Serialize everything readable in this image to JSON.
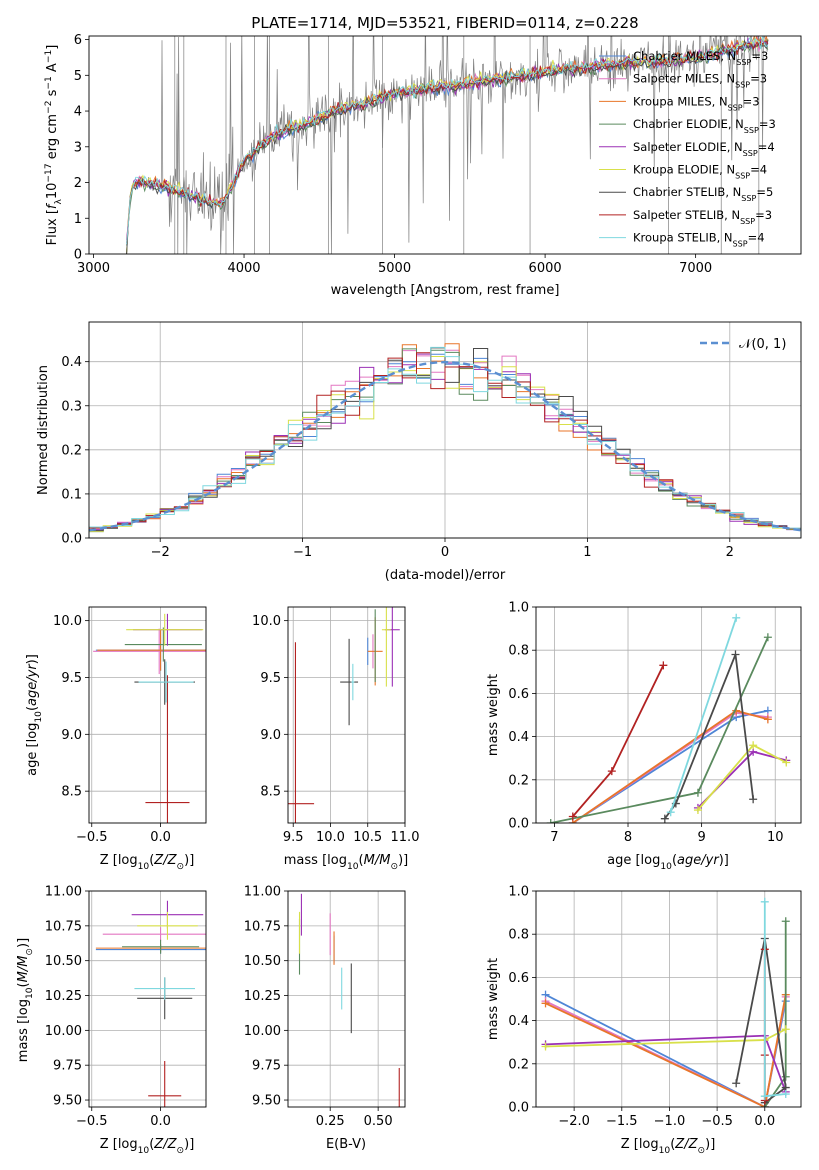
{
  "colors": {
    "chabrier_miles": "#4f86d6",
    "salpeter_miles": "#e377c2",
    "kroupa_miles": "#e8762a",
    "chabrier_elodie": "#5a8a5e",
    "salpeter_elodie": "#9b30b5",
    "kroupa_elodie": "#d8e04a",
    "chabrier_stelib": "#4a4a4a",
    "salpeter_stelib": "#b22222",
    "kroupa_stelib": "#7fd8df",
    "data_spectrum": "#7f7f7f",
    "gaussian": "#5b8fd1",
    "grid": "#b0b0b0"
  },
  "chart_data": [
    {
      "id": "spectrum",
      "type": "line",
      "title": "PLATE=1714, MJD=53521, FIBERID=0114, z=0.228",
      "xlabel": "wavelength [Angstrom, rest frame]",
      "ylabel": "Flux [f_λ10^-17 erg cm^-2 s^-1 A^-1]",
      "xlim": [
        2970,
        7700
      ],
      "ylim": [
        0,
        6.1
      ],
      "xticks": [
        "3000",
        "4000",
        "5000",
        "6000",
        "7000"
      ],
      "yticks": [
        "0",
        "1",
        "2",
        "3",
        "4",
        "5",
        "6"
      ],
      "legend_position": "upper right",
      "legend": [
        "Chabrier MILES, N_SSP=3",
        "Salpeter MILES, N_SSP=3",
        "Kroupa MILES, N_SSP=3",
        "Chabrier ELODIE, N_SSP=3",
        "Salpeter ELODIE, N_SSP=4",
        "Kroupa ELODIE, N_SSP=4",
        "Chabrier STELIB, N_SSP=5",
        "Salpeter STELIB, N_SSP=3",
        "Kroupa STELIB, N_SSP=4"
      ],
      "model_continuum": {
        "x": [
          3220,
          3240,
          3260,
          3300,
          3350,
          3400,
          3450,
          3500,
          3550,
          3600,
          3650,
          3700,
          3750,
          3800,
          3850,
          3900,
          3950,
          4000,
          4100,
          4200,
          4300,
          4400,
          4500,
          4600,
          4700,
          4800,
          4900,
          5000,
          5200,
          5400,
          5600,
          5800,
          6000,
          6200,
          6400,
          6600,
          6800,
          7000,
          7200,
          7400
        ],
        "y": [
          0.1,
          1.5,
          1.9,
          2.05,
          2.0,
          1.95,
          1.9,
          1.85,
          1.75,
          1.7,
          1.65,
          1.55,
          1.5,
          1.45,
          1.4,
          1.7,
          2.2,
          2.6,
          3.0,
          3.3,
          3.5,
          3.6,
          3.8,
          4.0,
          4.1,
          4.2,
          4.35,
          4.5,
          4.6,
          4.7,
          4.85,
          4.95,
          5.1,
          5.2,
          5.3,
          5.35,
          5.4,
          5.5,
          5.7,
          5.9
        ]
      }
    },
    {
      "id": "residuals",
      "type": "histogram",
      "xlabel": "(data-model)/error",
      "ylabel": "Normed distribution",
      "xlim": [
        -2.5,
        2.5
      ],
      "ylim": [
        0,
        0.49
      ],
      "xticks": [
        "−2",
        "−1",
        "0",
        "1",
        "2"
      ],
      "yticks": [
        "0.0",
        "0.1",
        "0.2",
        "0.3",
        "0.4"
      ],
      "legend_position": "upper right",
      "legend": [
        "𝒩(0, 1)"
      ],
      "bin_width": 0.1,
      "bin_start": -2.5
    },
    {
      "id": "age_vs_Z",
      "type": "errorbar",
      "xlabel": "Z [log10(Z/Z⊙)]",
      "ylabel": "age  [log10(age/yr)]",
      "xlim": [
        -0.52,
        0.33
      ],
      "ylim": [
        8.22,
        10.12
      ],
      "xticks": [
        "−0.5",
        "0.0"
      ],
      "yticks": [
        "8.5",
        "9.0",
        "9.5",
        "10.0"
      ],
      "points": [
        {
          "model": "chabrier_miles",
          "x": 0.0,
          "y": 9.74,
          "xerr": 0.47,
          "yerr": 0.18
        },
        {
          "model": "salpeter_miles",
          "x": -0.01,
          "y": 9.73,
          "xerr": 0.48,
          "yerr": 0.2
        },
        {
          "model": "kroupa_miles",
          "x": 0.0,
          "y": 9.74,
          "xerr": 0.46,
          "yerr": 0.18
        },
        {
          "model": "chabrier_elodie",
          "x": 0.02,
          "y": 9.79,
          "xerr": 0.28,
          "yerr": 0.15
        },
        {
          "model": "salpeter_elodie",
          "x": 0.05,
          "y": 9.92,
          "xerr": 0.25,
          "yerr": 0.14
        },
        {
          "model": "kroupa_elodie",
          "x": 0.03,
          "y": 9.92,
          "xerr": 0.28,
          "yerr": 0.14
        },
        {
          "model": "chabrier_stelib",
          "x": 0.03,
          "y": 9.46,
          "xerr": 0.22,
          "yerr": 0.2
        },
        {
          "model": "salpeter_stelib",
          "x": 0.05,
          "y": 8.4,
          "xerr": 0.16,
          "yerr": 1.12
        },
        {
          "model": "kroupa_stelib",
          "x": 0.04,
          "y": 9.46,
          "xerr": 0.2,
          "yerr": 0.18
        }
      ]
    },
    {
      "id": "age_vs_mass",
      "type": "errorbar",
      "xlabel": "mass [log10(M/M⊙)]",
      "ylabel": "",
      "xlim": [
        9.43,
        11.0
      ],
      "ylim": [
        8.22,
        10.12
      ],
      "xticks": [
        "9.5",
        "10.0",
        "10.5",
        "11.0"
      ],
      "yticks": [
        "8.5",
        "9.0",
        "9.5",
        "10.0"
      ],
      "points": [
        {
          "model": "chabrier_miles",
          "x": 10.5,
          "y": 9.73,
          "xerr": 0.0,
          "yerr": 0.12
        },
        {
          "model": "salpeter_miles",
          "x": 10.57,
          "y": 9.73,
          "xerr": 0.0,
          "yerr": 0.15
        },
        {
          "model": "kroupa_miles",
          "x": 10.6,
          "y": 9.73,
          "xerr": 0.1,
          "yerr": 0.3
        },
        {
          "model": "chabrier_elodie",
          "x": 10.6,
          "y": 9.78,
          "xerr": 0.0,
          "yerr": 0.32
        },
        {
          "model": "salpeter_elodie",
          "x": 10.83,
          "y": 9.92,
          "xerr": 0.1,
          "yerr": 0.5
        },
        {
          "model": "kroupa_elodie",
          "x": 10.75,
          "y": 9.92,
          "xerr": 0.06,
          "yerr": 0.5
        },
        {
          "model": "chabrier_stelib",
          "x": 10.25,
          "y": 9.46,
          "xerr": 0.12,
          "yerr": 0.38
        },
        {
          "model": "salpeter_stelib",
          "x": 9.53,
          "y": 8.39,
          "xerr": 0.25,
          "yerr": 1.42
        },
        {
          "model": "kroupa_stelib",
          "x": 10.3,
          "y": 9.46,
          "xerr": 0.02,
          "yerr": 0.16
        }
      ]
    },
    {
      "id": "weight_vs_age",
      "type": "line",
      "xlabel": "age  [log10(age/yr)]",
      "ylabel": "mass weight",
      "xlim": [
        6.75,
        10.35
      ],
      "ylim": [
        0,
        1.0
      ],
      "xticks": [
        "7",
        "8",
        "9",
        "10"
      ],
      "yticks": [
        "0.0",
        "0.2",
        "0.4",
        "0.6",
        "0.8",
        "1.0"
      ],
      "series": [
        {
          "model": "chabrier_miles",
          "x": [
            7.25,
            9.47,
            9.9
          ],
          "y": [
            0.0,
            0.49,
            0.52
          ]
        },
        {
          "model": "salpeter_miles",
          "x": [
            7.25,
            9.47,
            9.9
          ],
          "y": [
            0.0,
            0.51,
            0.49
          ]
        },
        {
          "model": "kroupa_miles",
          "x": [
            7.25,
            9.47,
            9.9
          ],
          "y": [
            0.0,
            0.52,
            0.48
          ]
        },
        {
          "model": "chabrier_elodie",
          "x": [
            6.95,
            8.95,
            9.9
          ],
          "y": [
            0.0,
            0.14,
            0.86
          ]
        },
        {
          "model": "salpeter_elodie",
          "x": [
            8.95,
            9.7,
            10.15
          ],
          "y": [
            0.07,
            0.33,
            0.29
          ]
        },
        {
          "model": "kroupa_elodie",
          "x": [
            8.95,
            9.7,
            10.15
          ],
          "y": [
            0.06,
            0.36,
            0.28
          ]
        },
        {
          "model": "chabrier_stelib",
          "x": [
            8.5,
            8.65,
            9.46,
            9.7
          ],
          "y": [
            0.02,
            0.09,
            0.78,
            0.11
          ]
        },
        {
          "model": "salpeter_stelib",
          "x": [
            7.25,
            7.78,
            8.48
          ],
          "y": [
            0.03,
            0.24,
            0.73
          ]
        },
        {
          "model": "kroupa_stelib",
          "x": [
            8.58,
            9.47
          ],
          "y": [
            0.05,
            0.95
          ]
        }
      ]
    },
    {
      "id": "mass_vs_Z",
      "type": "errorbar",
      "xlabel": "Z [log10(Z/Z⊙)]",
      "ylabel": "mass [log10(M/M⊙)]",
      "xlim": [
        -0.52,
        0.33
      ],
      "ylim": [
        9.45,
        11.0
      ],
      "xticks": [
        "−0.5",
        "0.0"
      ],
      "yticks": [
        "9.50",
        "9.75",
        "10.00",
        "10.25",
        "10.50",
        "10.75",
        "11.00"
      ],
      "points": [
        {
          "model": "chabrier_miles",
          "x": 0.0,
          "y": 10.58,
          "xerr": 0.47,
          "yerr": 0.03
        },
        {
          "model": "salpeter_miles",
          "x": 0.0,
          "y": 10.69,
          "xerr": 0.42,
          "yerr": 0.05
        },
        {
          "model": "kroupa_miles",
          "x": 0.0,
          "y": 10.59,
          "xerr": 0.47,
          "yerr": 0.03
        },
        {
          "model": "chabrier_elodie",
          "x": 0.0,
          "y": 10.6,
          "xerr": 0.28,
          "yerr": 0.05
        },
        {
          "model": "salpeter_elodie",
          "x": 0.05,
          "y": 10.83,
          "xerr": 0.26,
          "yerr": 0.1
        },
        {
          "model": "kroupa_elodie",
          "x": 0.05,
          "y": 10.75,
          "xerr": 0.22,
          "yerr": 0.1
        },
        {
          "model": "chabrier_stelib",
          "x": 0.03,
          "y": 10.23,
          "xerr": 0.2,
          "yerr": 0.15
        },
        {
          "model": "salpeter_stelib",
          "x": 0.03,
          "y": 9.53,
          "xerr": 0.12,
          "yerr": 0.25
        },
        {
          "model": "kroupa_stelib",
          "x": 0.03,
          "y": 10.3,
          "xerr": 0.22,
          "yerr": 0.08
        }
      ]
    },
    {
      "id": "mass_vs_ebv",
      "type": "errorbar",
      "xlabel": "E(B-V)",
      "ylabel": "",
      "xlim": [
        0.03,
        0.64
      ],
      "ylim": [
        9.45,
        11.0
      ],
      "xticks": [
        "0.25",
        "0.50"
      ],
      "yticks": [
        "9.50",
        "9.75",
        "10.00",
        "10.25",
        "10.50",
        "10.75",
        "11.00"
      ],
      "points": [
        {
          "model": "chabrier_miles",
          "x": 0.27,
          "y": 10.58,
          "xerr": 0.0,
          "yerr": 0.1
        },
        {
          "model": "salpeter_miles",
          "x": 0.25,
          "y": 10.69,
          "xerr": 0.0,
          "yerr": 0.15
        },
        {
          "model": "kroupa_miles",
          "x": 0.27,
          "y": 10.59,
          "xerr": 0.0,
          "yerr": 0.12
        },
        {
          "model": "chabrier_elodie",
          "x": 0.09,
          "y": 10.6,
          "xerr": 0.0,
          "yerr": 0.2
        },
        {
          "model": "salpeter_elodie",
          "x": 0.1,
          "y": 10.83,
          "xerr": 0.0,
          "yerr": 0.15
        },
        {
          "model": "kroupa_elodie",
          "x": 0.09,
          "y": 10.7,
          "xerr": 0.0,
          "yerr": 0.15
        },
        {
          "model": "chabrier_stelib",
          "x": 0.36,
          "y": 10.23,
          "xerr": 0.0,
          "yerr": 0.25
        },
        {
          "model": "salpeter_stelib",
          "x": 0.61,
          "y": 9.53,
          "xerr": 0.0,
          "yerr": 0.2
        },
        {
          "model": "kroupa_stelib",
          "x": 0.31,
          "y": 10.3,
          "xerr": 0.0,
          "yerr": 0.15
        }
      ]
    },
    {
      "id": "weight_vs_Z",
      "type": "line",
      "xlabel": "Z [log10(Z/Z⊙)]",
      "ylabel": "mass weight",
      "xlim": [
        -2.4,
        0.38
      ],
      "ylim": [
        0,
        1.0
      ],
      "xticks": [
        "−2.0",
        "−1.5",
        "−1.0",
        "−0.5",
        "0.0"
      ],
      "yticks": [
        "0.0",
        "0.2",
        "0.4",
        "0.6",
        "0.8",
        "1.0"
      ],
      "series": [
        {
          "model": "chabrier_miles",
          "x": [
            -2.3,
            0.0,
            0.22
          ],
          "y": [
            0.52,
            0.0,
            0.49
          ]
        },
        {
          "model": "salpeter_miles",
          "x": [
            -2.3,
            0.0,
            0.22
          ],
          "y": [
            0.49,
            0.0,
            0.51
          ]
        },
        {
          "model": "kroupa_miles",
          "x": [
            -2.3,
            0.0,
            0.22
          ],
          "y": [
            0.48,
            0.0,
            0.52
          ]
        },
        {
          "model": "chabrier_elodie",
          "x": [
            0.0,
            0.22,
            0.22
          ],
          "y": [
            0.0,
            0.14,
            0.86
          ]
        },
        {
          "model": "salpeter_elodie",
          "x": [
            -2.3,
            0.0,
            0.22
          ],
          "y": [
            0.29,
            0.33,
            0.07
          ]
        },
        {
          "model": "kroupa_elodie",
          "x": [
            -2.3,
            0.0,
            0.22
          ],
          "y": [
            0.28,
            0.31,
            0.36
          ]
        },
        {
          "model": "chabrier_stelib",
          "x": [
            -0.3,
            0.0,
            0.22,
            0.0
          ],
          "y": [
            0.11,
            0.78,
            0.09,
            0.02
          ]
        },
        {
          "model": "salpeter_stelib",
          "x": [
            0.0,
            0.0,
            0.0
          ],
          "y": [
            0.03,
            0.24,
            0.73
          ]
        },
        {
          "model": "kroupa_stelib",
          "x": [
            0.0,
            0.0,
            0.22
          ],
          "y": [
            0.95,
            0.05,
            0.06
          ]
        }
      ]
    }
  ]
}
